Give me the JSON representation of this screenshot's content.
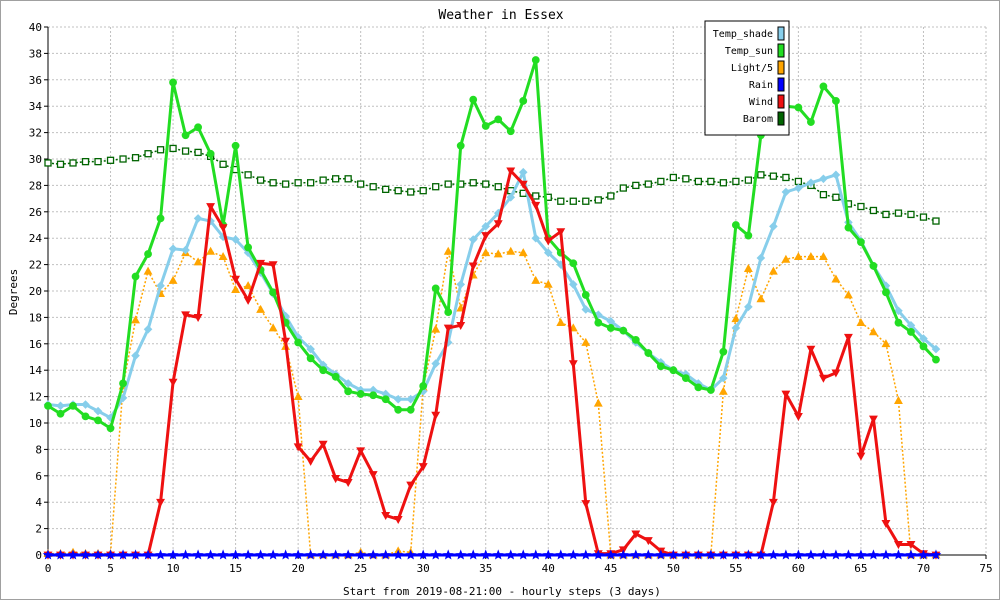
{
  "chart_data": {
    "type": "line",
    "title": "Weather in Essex",
    "xlabel": "Start from 2019-08-21:00 - hourly steps (3 days)",
    "ylabel": "Degrees",
    "xlim": [
      0,
      75
    ],
    "ylim": [
      0,
      40
    ],
    "x_ticks": [
      0,
      5,
      10,
      15,
      20,
      25,
      30,
      35,
      40,
      45,
      50,
      55,
      60,
      65,
      70,
      75
    ],
    "y_ticks": [
      0,
      2,
      4,
      6,
      8,
      10,
      12,
      14,
      16,
      18,
      20,
      22,
      24,
      26,
      28,
      30,
      32,
      34,
      36,
      38,
      40
    ],
    "grid": true,
    "legend_position": "top-right",
    "series": [
      {
        "name": "Temp_shade",
        "color": "#87ceeb",
        "marker": "diamond",
        "line": "solid",
        "width": 3,
        "values": [
          11.4,
          11.3,
          11.4,
          11.4,
          10.9,
          10.4,
          11.9,
          15.1,
          17.1,
          20.4,
          23.2,
          23.1,
          25.5,
          25.3,
          24.1,
          23.9,
          22.9,
          21.4,
          19.8,
          18.1,
          16.5,
          15.6,
          14.4,
          13.7,
          13.0,
          12.5,
          12.5,
          12.2,
          11.8,
          11.8,
          12.4,
          14.5,
          16.1,
          20.5,
          23.9,
          24.9,
          25.9,
          27.1,
          29.0,
          24.0,
          22.9,
          22.0,
          20.5,
          18.6,
          18.2,
          17.7,
          17.0,
          16.1,
          15.3,
          14.6,
          14.0,
          13.7,
          13.0,
          12.5,
          13.4,
          17.2,
          18.8,
          22.5,
          24.9,
          27.5,
          27.8,
          28.2,
          28.5,
          28.8,
          25.2,
          23.8,
          21.9,
          20.4,
          18.5,
          17.4,
          16.4,
          15.6
        ]
      },
      {
        "name": "Temp_sun",
        "color": "#22dd22",
        "marker": "circle",
        "line": "solid",
        "width": 3,
        "values": [
          11.3,
          10.7,
          11.3,
          10.5,
          10.2,
          9.6,
          13.0,
          21.1,
          22.8,
          25.5,
          35.8,
          31.8,
          32.4,
          30.4,
          25.0,
          31.0,
          23.3,
          21.6,
          19.9,
          17.6,
          16.1,
          14.9,
          14.0,
          13.5,
          12.4,
          12.2,
          12.1,
          11.8,
          11.0,
          11.0,
          12.8,
          20.2,
          18.4,
          31.0,
          34.5,
          32.5,
          33.0,
          32.1,
          34.4,
          37.5,
          24.0,
          22.9,
          22.1,
          19.7,
          17.6,
          17.2,
          17.0,
          16.3,
          15.3,
          14.3,
          14.0,
          13.4,
          12.7,
          12.5,
          15.4,
          25.0,
          24.2,
          31.8,
          34.9,
          34.0,
          33.9,
          32.8,
          35.5,
          34.4,
          24.8,
          23.7,
          21.9,
          19.9,
          17.6,
          16.9,
          15.8,
          14.8
        ]
      },
      {
        "name": "Light/5",
        "color": "#ffa500",
        "marker": "triangle-up",
        "line": "dotted",
        "width": 1.5,
        "values": [
          0.1,
          0.1,
          0.2,
          0.1,
          0.1,
          0.1,
          12.8,
          17.8,
          21.5,
          19.8,
          20.8,
          22.9,
          22.2,
          23.0,
          22.6,
          20.1,
          20.4,
          18.6,
          17.2,
          15.8,
          12.0,
          0,
          0,
          0,
          0,
          0.2,
          0,
          0,
          0.3,
          0.2,
          12.7,
          17.1,
          23.0,
          18.7,
          21.2,
          22.9,
          22.8,
          23.0,
          22.9,
          20.8,
          20.5,
          17.6,
          17.2,
          16.1,
          11.5,
          0,
          0,
          0,
          0,
          0,
          0,
          0,
          0,
          0,
          12.4,
          17.9,
          21.7,
          19.4,
          21.5,
          22.4,
          22.6,
          22.6,
          22.6,
          20.9,
          19.7,
          17.6,
          16.9,
          16.0,
          11.7,
          0,
          0,
          0
        ]
      },
      {
        "name": "Rain",
        "color": "#0000ff",
        "marker": "star",
        "line": "solid",
        "width": 3,
        "values": [
          0,
          0,
          0,
          0,
          0,
          0,
          0,
          0,
          0,
          0,
          0,
          0,
          0,
          0,
          0,
          0,
          0,
          0,
          0,
          0,
          0,
          0,
          0,
          0,
          0,
          0,
          0,
          0,
          0,
          0,
          0,
          0,
          0,
          0,
          0,
          0,
          0,
          0,
          0,
          0,
          0,
          0,
          0,
          0,
          0,
          0,
          0,
          0,
          0,
          0,
          0,
          0,
          0,
          0,
          0,
          0,
          0,
          0,
          0,
          0,
          0,
          0,
          0,
          0,
          0,
          0,
          0,
          0,
          0,
          0,
          0,
          0
        ]
      },
      {
        "name": "Wind",
        "color": "#ee1111",
        "marker": "triangle-down",
        "line": "solid",
        "width": 3,
        "values": [
          0,
          0,
          0,
          0,
          0,
          0,
          0,
          0,
          0,
          4.0,
          13.1,
          18.2,
          18.0,
          26.4,
          24.8,
          20.9,
          19.3,
          22.1,
          22.0,
          16.2,
          8.2,
          7.1,
          8.4,
          5.8,
          5.5,
          7.9,
          6.1,
          3.0,
          2.7,
          5.3,
          6.7,
          10.6,
          17.2,
          17.4,
          21.9,
          24.2,
          25.1,
          29.1,
          28.1,
          26.5,
          23.8,
          24.5,
          14.5,
          3.9,
          0.1,
          0.1,
          0.4,
          1.6,
          1.1,
          0.3,
          0,
          0,
          0,
          0,
          0,
          0,
          0,
          0,
          4.0,
          12.2,
          10.5,
          15.6,
          13.4,
          13.8,
          16.5,
          7.5,
          10.3,
          2.4,
          0.8,
          0.8,
          0.1,
          0
        ]
      },
      {
        "name": "Barom",
        "color": "#006400",
        "marker": "square",
        "line": "dotted",
        "width": 1.5,
        "values": [
          29.7,
          29.6,
          29.7,
          29.8,
          29.8,
          29.9,
          30.0,
          30.1,
          30.4,
          30.7,
          30.8,
          30.6,
          30.5,
          30.2,
          29.6,
          29.2,
          28.8,
          28.4,
          28.2,
          28.1,
          28.2,
          28.2,
          28.4,
          28.5,
          28.5,
          28.1,
          27.9,
          27.7,
          27.6,
          27.5,
          27.6,
          27.9,
          28.1,
          28.1,
          28.2,
          28.1,
          27.9,
          27.6,
          27.4,
          27.2,
          27.1,
          26.8,
          26.8,
          26.8,
          26.9,
          27.2,
          27.8,
          28.0,
          28.1,
          28.3,
          28.6,
          28.5,
          28.3,
          28.3,
          28.2,
          28.3,
          28.4,
          28.8,
          28.7,
          28.6,
          28.3,
          28.0,
          27.3,
          27.1,
          26.6,
          26.4,
          26.1,
          25.8,
          25.9,
          25.8,
          25.6,
          25.3
        ]
      }
    ]
  }
}
